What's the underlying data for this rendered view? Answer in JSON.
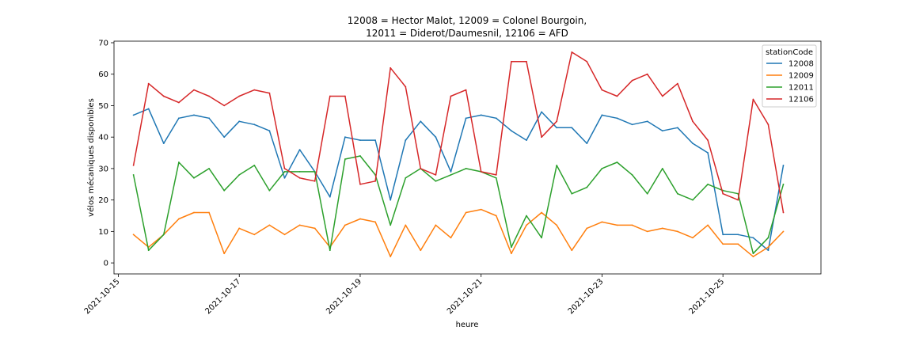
{
  "chart_data": {
    "type": "line",
    "title_line1": "12008 = Hector Malot, 12009 = Colonel Bourgoin,",
    "title_line2": "12011 = Diderot/Daumesnil, 12106 = AFD",
    "xlabel": "heure",
    "ylabel": "vélos mécaniques disponibles",
    "ylim": [
      -3.5,
      70.5
    ],
    "xlim": [
      "2021-10-14T22:16",
      "2021-10-26T14:55"
    ],
    "yticks": [
      0,
      10,
      20,
      30,
      40,
      50,
      60,
      70
    ],
    "xticks": [
      "2021-10-15",
      "2021-10-17",
      "2021-10-19",
      "2021-10-21",
      "2021-10-23",
      "2021-10-25"
    ],
    "legend_title": "stationCode",
    "legend_position": "top-right",
    "x": [
      "2021-10-15T06:00",
      "2021-10-15T12:00",
      "2021-10-15T18:00",
      "2021-10-16T00:00",
      "2021-10-16T06:00",
      "2021-10-16T12:00",
      "2021-10-16T18:00",
      "2021-10-17T00:00",
      "2021-10-17T06:00",
      "2021-10-17T12:00",
      "2021-10-17T18:00",
      "2021-10-18T00:00",
      "2021-10-18T06:00",
      "2021-10-18T12:00",
      "2021-10-18T18:00",
      "2021-10-19T00:00",
      "2021-10-19T06:00",
      "2021-10-19T12:00",
      "2021-10-19T18:00",
      "2021-10-20T00:00",
      "2021-10-20T06:00",
      "2021-10-20T12:00",
      "2021-10-20T18:00",
      "2021-10-21T00:00",
      "2021-10-21T06:00",
      "2021-10-21T12:00",
      "2021-10-21T18:00",
      "2021-10-22T00:00",
      "2021-10-22T06:00",
      "2021-10-22T12:00",
      "2021-10-22T18:00",
      "2021-10-23T00:00",
      "2021-10-23T06:00",
      "2021-10-23T12:00",
      "2021-10-23T18:00",
      "2021-10-24T00:00",
      "2021-10-24T06:00",
      "2021-10-24T12:00",
      "2021-10-24T18:00",
      "2021-10-25T00:00",
      "2021-10-25T06:00",
      "2021-10-25T12:00",
      "2021-10-25T18:00",
      "2021-10-26T00:00"
    ],
    "series": [
      {
        "name": "12008",
        "color": "#1f77b4",
        "values": [
          47,
          49,
          38,
          46,
          47,
          46,
          40,
          45,
          44,
          42,
          27,
          36,
          29,
          21,
          40,
          39,
          39,
          20,
          39,
          45,
          40,
          29,
          46,
          47,
          46,
          42,
          39,
          48,
          43,
          43,
          38,
          47,
          46,
          44,
          45,
          42,
          43,
          38,
          35,
          9,
          9,
          8,
          4,
          31
        ]
      },
      {
        "name": "12009",
        "color": "#ff7f0e",
        "values": [
          9,
          5,
          9,
          14,
          16,
          16,
          3,
          11,
          9,
          12,
          9,
          12,
          11,
          5,
          12,
          14,
          13,
          2,
          12,
          4,
          12,
          8,
          16,
          17,
          15,
          3,
          12,
          16,
          12,
          4,
          11,
          13,
          12,
          12,
          10,
          11,
          10,
          8,
          12,
          6,
          6,
          2,
          5,
          10
        ]
      },
      {
        "name": "12011",
        "color": "#2ca02c",
        "values": [
          28,
          4,
          9,
          32,
          27,
          30,
          23,
          28,
          31,
          23,
          29,
          29,
          29,
          4,
          33,
          34,
          28,
          12,
          27,
          30,
          26,
          28,
          30,
          29,
          27,
          5,
          15,
          8,
          31,
          22,
          24,
          30,
          32,
          28,
          22,
          30,
          22,
          20,
          25,
          23,
          22,
          3,
          8,
          25
        ]
      },
      {
        "name": "12106",
        "color": "#d62728",
        "values": [
          31,
          57,
          53,
          51,
          55,
          53,
          50,
          53,
          55,
          54,
          30,
          27,
          26,
          53,
          53,
          25,
          26,
          62,
          56,
          30,
          28,
          53,
          55,
          29,
          28,
          64,
          64,
          40,
          45,
          67,
          64,
          55,
          53,
          58,
          60,
          53,
          57,
          45,
          39,
          22,
          20,
          52,
          44,
          16
        ]
      }
    ]
  }
}
